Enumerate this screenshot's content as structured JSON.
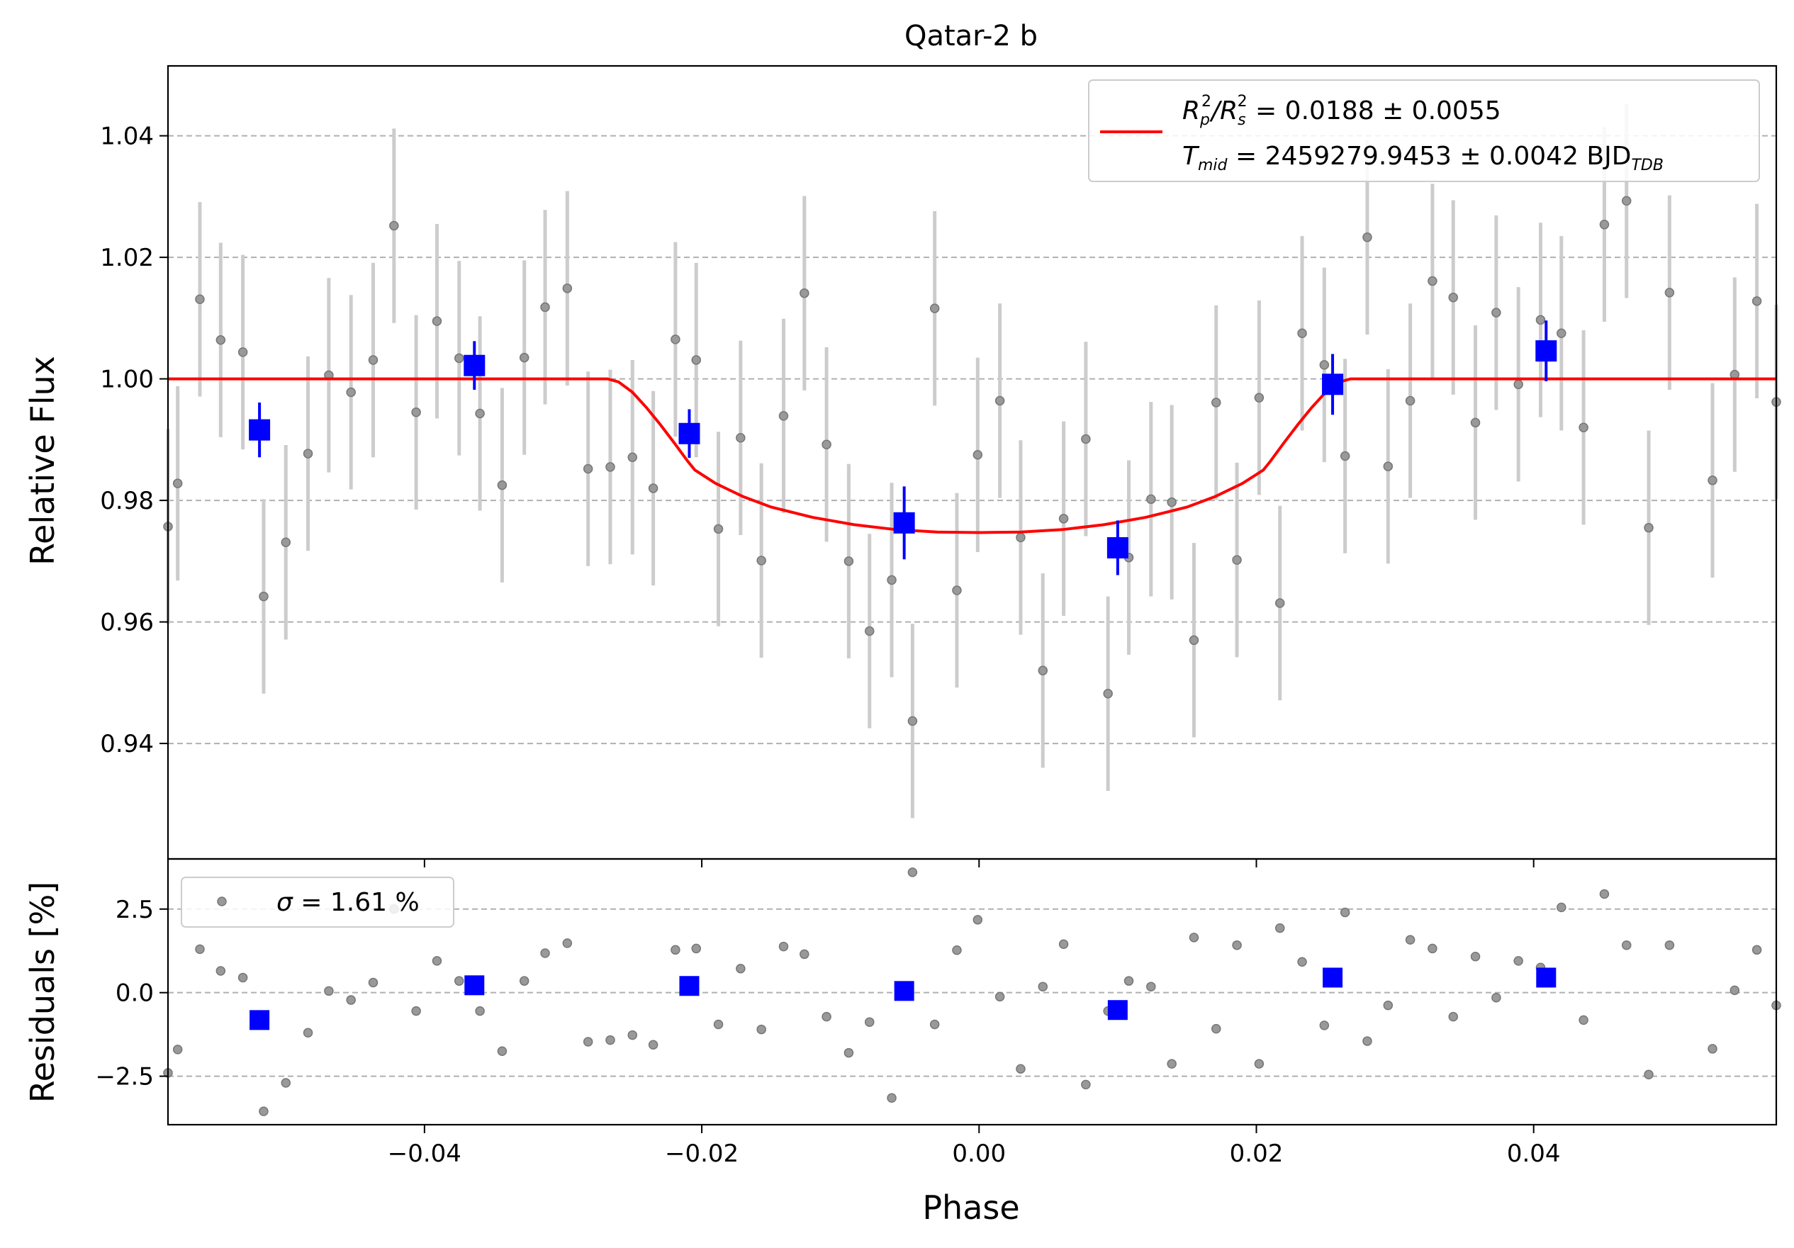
{
  "chart_data": [
    {
      "panel": "main",
      "type": "scatter",
      "title": "Qatar-2 b",
      "xlabel": "",
      "ylabel": "Relative Flux",
      "xlim": [
        -0.0585,
        0.0575
      ],
      "ylim": [
        0.921,
        1.0515
      ],
      "xticks": [
        -0.04,
        -0.02,
        0.0,
        0.02,
        0.04
      ],
      "xtick_labels": [
        "−0.04",
        "−0.02",
        "0.00",
        "0.02",
        "0.04"
      ],
      "yticks": [
        0.94,
        0.96,
        0.98,
        1.0,
        1.02,
        1.04
      ],
      "ytick_labels": [
        "0.94",
        "0.96",
        "0.98",
        "1.00",
        "1.02",
        "1.04"
      ],
      "grid": "horizontal dashed",
      "legend_position": "top-right",
      "legend": {
        "line1_prefix": "R",
        "line1_sub_p": "p",
        "line1_sup": "2",
        "line1_slash": "/R",
        "line1_sub_s": "s",
        "line1_value": " = 0.0188 ± 0.0055",
        "line2_prefix": "T",
        "line2_sub": "mid",
        "line2_value": " = 2459279.9453 ± 0.0042 BJD",
        "line2_unit_sub": "TDB"
      },
      "colors": {
        "data": "#999999",
        "errorbar": "#cccccc",
        "binned": "#0000ff",
        "model": "#ff0000"
      },
      "model": {
        "name": "",
        "x": [
          -0.0585,
          -0.0268,
          -0.026,
          -0.025,
          -0.024,
          -0.023,
          -0.022,
          -0.021,
          -0.0205,
          -0.019,
          -0.017,
          -0.015,
          -0.012,
          -0.009,
          -0.006,
          -0.003,
          0.0,
          0.003,
          0.006,
          0.009,
          0.012,
          0.015,
          0.017,
          0.019,
          0.0205,
          0.021,
          0.022,
          0.023,
          0.024,
          0.025,
          0.026,
          0.0268,
          0.0575
        ],
        "y": [
          1.0,
          1.0,
          0.9995,
          0.9978,
          0.9953,
          0.9925,
          0.9895,
          0.9864,
          0.985,
          0.9828,
          0.9806,
          0.9789,
          0.9772,
          0.976,
          0.9752,
          0.9748,
          0.9747,
          0.9748,
          0.9752,
          0.976,
          0.9772,
          0.9789,
          0.9806,
          0.9828,
          0.985,
          0.9864,
          0.9895,
          0.9925,
          0.9953,
          0.9978,
          0.9995,
          1.0,
          1.0
        ]
      },
      "points": {
        "x": [
          -0.0585,
          -0.0578,
          -0.0562,
          -0.0547,
          -0.0531,
          -0.0516,
          -0.05,
          -0.0484,
          -0.0469,
          -0.0453,
          -0.0437,
          -0.0422,
          -0.0406,
          -0.0391,
          -0.0375,
          -0.036,
          -0.0344,
          -0.0328,
          -0.0313,
          -0.0297,
          -0.0282,
          -0.0266,
          -0.025,
          -0.0235,
          -0.0219,
          -0.0204,
          -0.0188,
          -0.0172,
          -0.0157,
          -0.0141,
          -0.0126,
          -0.011,
          -0.0094,
          -0.0079,
          -0.0063,
          -0.0048,
          -0.0032,
          -0.0016,
          -0.0001,
          0.0015,
          0.003,
          0.0046,
          0.0061,
          0.0077,
          0.0093,
          0.0108,
          0.0124,
          0.0139,
          0.0155,
          0.0171,
          0.0186,
          0.0202,
          0.0217,
          0.0233,
          0.0249,
          0.0264,
          0.028,
          0.0295,
          0.0311,
          0.0327,
          0.0342,
          0.0358,
          0.0373,
          0.0389,
          0.0405,
          0.042,
          0.0436,
          0.0451,
          0.0467,
          0.0483,
          0.0498,
          0.0529,
          0.0545,
          0.0561,
          0.0575
        ],
        "y": [
          0.9757,
          0.9828,
          1.0131,
          1.0064,
          1.0044,
          0.9642,
          0.9731,
          0.9877,
          1.0006,
          0.9978,
          1.0031,
          1.0252,
          0.9945,
          1.0095,
          1.0034,
          0.9943,
          0.9825,
          1.0035,
          1.0118,
          1.0149,
          0.9852,
          0.9855,
          0.9871,
          0.982,
          1.0065,
          1.0031,
          0.9753,
          0.9903,
          0.9701,
          0.9939,
          1.0141,
          0.9892,
          0.97,
          0.9585,
          0.9669,
          0.9437,
          1.0116,
          0.9652,
          0.9875,
          0.9964,
          0.9739,
          0.952,
          0.977,
          0.9901,
          0.9482,
          0.9706,
          0.9802,
          0.9797,
          0.957,
          0.9961,
          0.9702,
          0.9969,
          0.9631,
          1.0075,
          1.0023,
          0.9873,
          1.0233,
          0.9856,
          0.9964,
          1.0161,
          1.0134,
          0.9928,
          1.0109,
          0.9991,
          1.0097,
          1.0075,
          0.992,
          1.0254,
          1.0293,
          0.9755,
          1.0142,
          0.9833,
          1.0007,
          1.0128,
          0.9962
        ],
        "err": [
          0.016,
          0.016,
          0.016,
          0.016,
          0.016,
          0.016,
          0.016,
          0.016,
          0.016,
          0.016,
          0.016,
          0.016,
          0.016,
          0.016,
          0.016,
          0.016,
          0.016,
          0.016,
          0.016,
          0.016,
          0.016,
          0.016,
          0.016,
          0.016,
          0.016,
          0.016,
          0.016,
          0.016,
          0.016,
          0.016,
          0.016,
          0.016,
          0.016,
          0.016,
          0.016,
          0.016,
          0.016,
          0.016,
          0.016,
          0.016,
          0.016,
          0.016,
          0.016,
          0.016,
          0.016,
          0.016,
          0.016,
          0.016,
          0.016,
          0.016,
          0.016,
          0.016,
          0.016,
          0.016,
          0.016,
          0.016,
          0.016,
          0.016,
          0.016,
          0.016,
          0.016,
          0.016,
          0.016,
          0.016,
          0.016,
          0.016,
          0.016,
          0.016,
          0.016,
          0.016,
          0.016,
          0.016,
          0.016,
          0.016,
          0.016
        ]
      },
      "binned": {
        "x": [
          -0.0519,
          -0.0364,
          -0.0209,
          -0.0054,
          0.01,
          0.0255,
          0.0409
        ],
        "y": [
          0.9916,
          1.0022,
          0.991,
          0.9763,
          0.9722,
          0.9991,
          1.0046
        ],
        "err": [
          0.0045,
          0.004,
          0.004,
          0.006,
          0.0045,
          0.005,
          0.005
        ]
      }
    },
    {
      "panel": "residuals",
      "type": "scatter",
      "xlabel": "Phase",
      "ylabel": "Residuals [%]",
      "xlim": [
        -0.0585,
        0.0575
      ],
      "ylim": [
        -3.95,
        4.0
      ],
      "xticks": [
        -0.04,
        -0.02,
        0.0,
        0.02,
        0.04
      ],
      "xtick_labels": [
        "−0.04",
        "−0.02",
        "0.00",
        "0.02",
        "0.04"
      ],
      "yticks": [
        -2.5,
        0.0,
        2.5
      ],
      "ytick_labels": [
        "−2.5",
        "0.0",
        "2.5"
      ],
      "grid": "horizontal dashed",
      "legend_position": "top-left",
      "legend": {
        "symbol": "σ",
        "text": " = 1.61 %"
      },
      "points": {
        "x": [
          -0.0585,
          -0.0578,
          -0.0562,
          -0.0547,
          -0.0531,
          -0.0516,
          -0.05,
          -0.0484,
          -0.0469,
          -0.0453,
          -0.0437,
          -0.0422,
          -0.0406,
          -0.0391,
          -0.0375,
          -0.036,
          -0.0344,
          -0.0328,
          -0.0313,
          -0.0297,
          -0.0282,
          -0.0266,
          -0.025,
          -0.0235,
          -0.0219,
          -0.0204,
          -0.0188,
          -0.0172,
          -0.0157,
          -0.0141,
          -0.0126,
          -0.011,
          -0.0094,
          -0.0079,
          -0.0063,
          -0.0048,
          -0.0032,
          -0.0016,
          -0.0001,
          0.0015,
          0.003,
          0.0046,
          0.0061,
          0.0077,
          0.0093,
          0.0108,
          0.0124,
          0.0139,
          0.0155,
          0.0171,
          0.0186,
          0.0202,
          0.0217,
          0.0233,
          0.0249,
          0.0264,
          0.028,
          0.0295,
          0.0311,
          0.0327,
          0.0342,
          0.0358,
          0.0373,
          0.0389,
          0.0405,
          0.042,
          0.0436,
          0.0451,
          0.0467,
          0.0483,
          0.0498,
          0.0529,
          0.0545,
          0.0561,
          0.0575
        ],
        "y": [
          -2.4,
          -1.7,
          1.3,
          0.65,
          0.45,
          -3.55,
          -2.7,
          -1.2,
          0.05,
          -0.22,
          0.3,
          2.5,
          -0.55,
          0.95,
          0.35,
          -0.55,
          -1.75,
          0.35,
          1.18,
          1.48,
          -1.47,
          -1.42,
          -1.27,
          -1.56,
          1.28,
          1.32,
          -0.95,
          0.72,
          -1.1,
          1.38,
          1.15,
          -0.72,
          -1.8,
          -0.88,
          -3.15,
          3.6,
          -0.95,
          1.27,
          2.18,
          -0.12,
          -2.28,
          0.18,
          1.45,
          -2.75,
          -0.55,
          0.35,
          0.18,
          -2.13,
          1.65,
          -1.08,
          1.42,
          -2.13,
          1.93,
          0.92,
          -0.98,
          2.4,
          -1.45,
          -0.38,
          1.58,
          1.32,
          -0.72,
          1.08,
          -0.15,
          0.95,
          0.75,
          2.55,
          -0.82,
          2.95,
          1.42,
          -2.45,
          1.42,
          -1.68,
          0.07,
          1.28,
          -0.38
        ]
      },
      "binned": {
        "x": [
          -0.0519,
          -0.0364,
          -0.0209,
          -0.0054,
          0.01,
          0.0255,
          0.0409
        ],
        "y": [
          -0.82,
          0.22,
          0.2,
          0.05,
          -0.52,
          0.45,
          0.45
        ]
      }
    }
  ]
}
